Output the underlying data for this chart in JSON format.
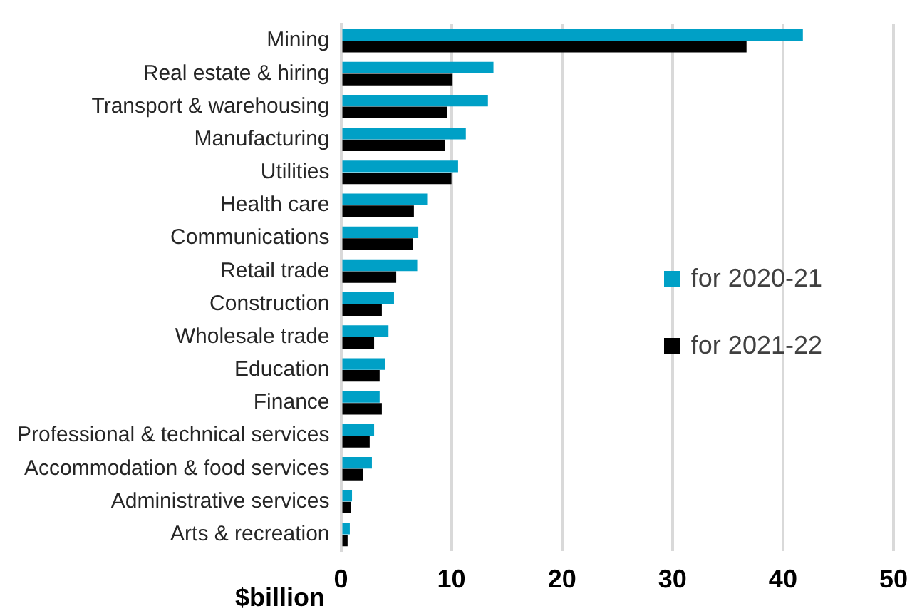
{
  "chart_data": {
    "type": "bar",
    "orientation": "horizontal",
    "xlabel": "$billion",
    "categories": [
      "Mining",
      "Real estate & hiring",
      "Transport & warehousing",
      "Manufacturing",
      "Utilities",
      "Health care",
      "Communications",
      "Retail trade",
      "Construction",
      "Wholesale trade",
      "Education",
      "Finance",
      "Professional & technical services",
      "Accommodation & food services",
      "Administrative services",
      "Arts & recreation"
    ],
    "series": [
      {
        "name": "for 2020-21",
        "color": "#00a0c6",
        "values": [
          41.8,
          13.8,
          13.3,
          11.3,
          10.6,
          7.8,
          7.0,
          6.9,
          4.8,
          4.3,
          4.0,
          3.5,
          3.0,
          2.8,
          1.0,
          0.8
        ]
      },
      {
        "name": "for 2021-22",
        "color": "#000000",
        "values": [
          36.7,
          10.1,
          9.6,
          9.4,
          10.0,
          6.6,
          6.5,
          5.0,
          3.7,
          3.0,
          3.5,
          3.7,
          2.6,
          2.0,
          0.9,
          0.6
        ]
      }
    ],
    "xlim": [
      0,
      50
    ],
    "xticks": [
      0,
      10,
      20,
      30,
      40,
      50
    ],
    "grid": "x",
    "legend": "right"
  }
}
